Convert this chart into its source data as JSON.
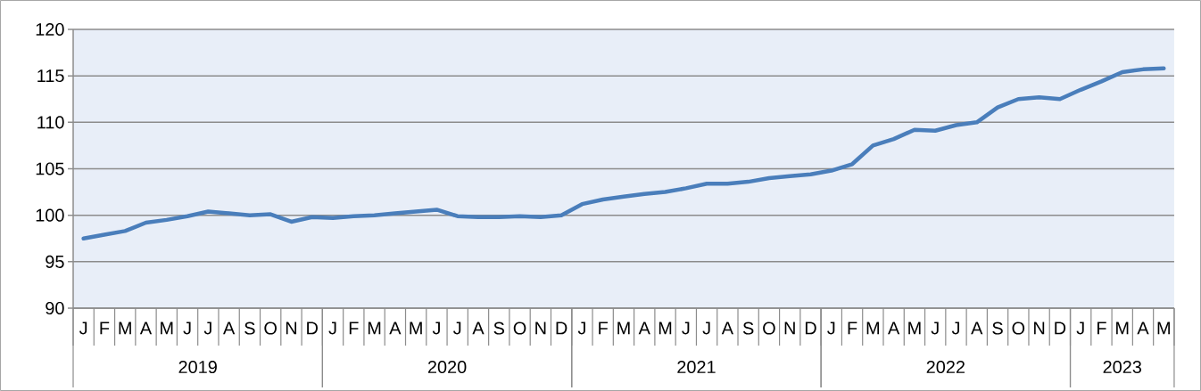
{
  "chart_data": {
    "type": "line",
    "categories": [
      "J",
      "F",
      "M",
      "A",
      "M",
      "J",
      "J",
      "A",
      "S",
      "O",
      "N",
      "D",
      "J",
      "F",
      "M",
      "A",
      "M",
      "J",
      "J",
      "A",
      "S",
      "O",
      "N",
      "D",
      "J",
      "F",
      "M",
      "A",
      "M",
      "J",
      "J",
      "A",
      "S",
      "O",
      "N",
      "D",
      "J",
      "F",
      "M",
      "A",
      "M",
      "J",
      "J",
      "A",
      "S",
      "O",
      "N",
      "D",
      "J",
      "F",
      "M",
      "A",
      "M"
    ],
    "series": [
      {
        "color": "#4a7ebb",
        "values": [
          97.5,
          97.9,
          98.3,
          99.2,
          99.5,
          99.9,
          100.4,
          100.2,
          100.0,
          100.1,
          99.3,
          99.8,
          99.7,
          99.9,
          100.0,
          100.2,
          100.4,
          100.6,
          99.9,
          99.8,
          99.8,
          99.9,
          99.8,
          100.0,
          101.2,
          101.7,
          102.0,
          102.3,
          102.5,
          102.9,
          103.4,
          103.4,
          103.6,
          104.0,
          104.2,
          104.4,
          104.8,
          105.5,
          107.5,
          108.2,
          109.2,
          109.1,
          109.7,
          110.0,
          111.6,
          112.5,
          112.7,
          112.5,
          113.5,
          114.4,
          115.4,
          115.7,
          115.8
        ]
      }
    ],
    "ylim": [
      90,
      120
    ],
    "yticks": [
      90,
      95,
      100,
      105,
      110,
      115,
      120
    ],
    "grid": "y",
    "annotations": [
      "2019",
      "2020",
      "2021",
      "2022",
      "2023"
    ]
  }
}
